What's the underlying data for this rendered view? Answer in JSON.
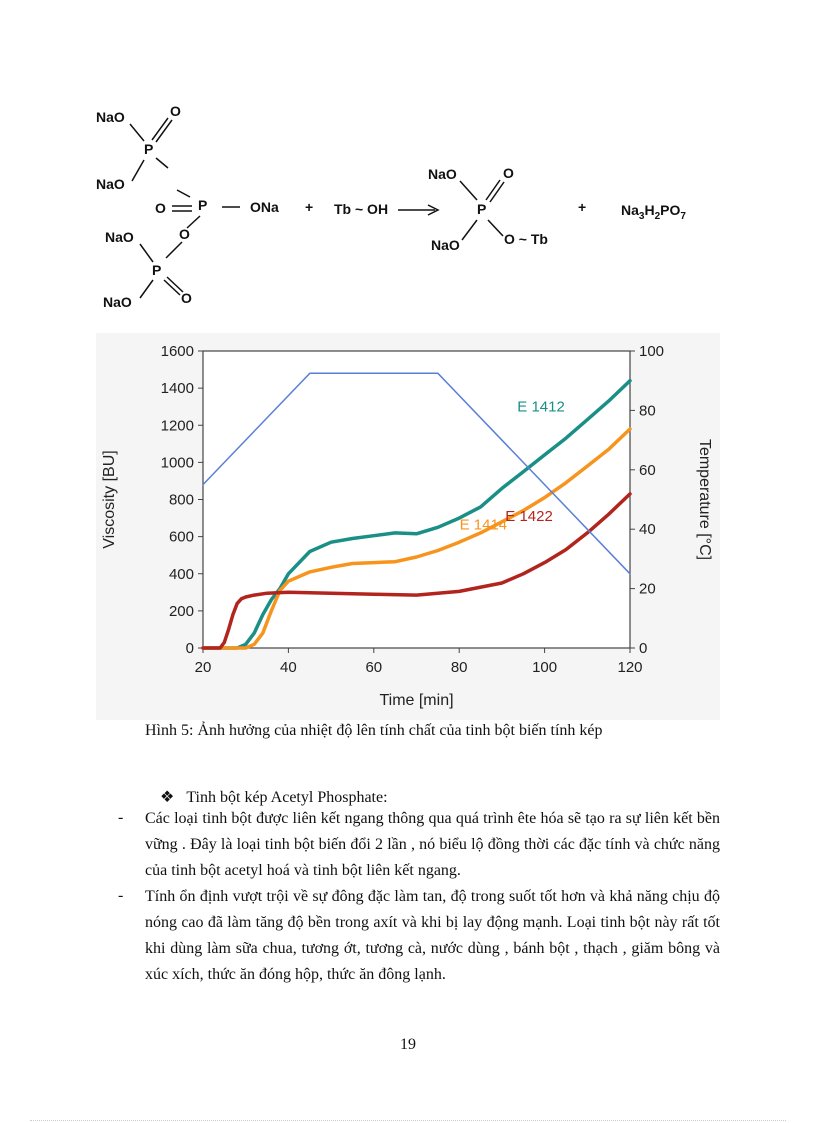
{
  "reaction": {
    "reactant1": {
      "top_nao": "NaO",
      "top_o": "O",
      "top_p": "P",
      "mid_nao": "NaO",
      "center_o": "O",
      "center_p": "P",
      "center_ona": "ONa",
      "bridge_o": "O",
      "bot_nao1": "NaO",
      "bot_p": "P",
      "bot_nao2": "NaO",
      "bot_o": "O"
    },
    "plus1": "+",
    "reactant2": "Tb ~ OH",
    "product1": {
      "nao1": "NaO",
      "o_top": "O",
      "p": "P",
      "nao2": "NaO",
      "o_tb": "O ~ Tb"
    },
    "plus2": "+",
    "product2_main": "Na",
    "product2_sub1": "3",
    "product2_h": "H",
    "product2_sub2": "2",
    "product2_po": "PO",
    "product2_sub3": "7"
  },
  "chart_data": {
    "type": "line",
    "title": "",
    "xlabel": "Time [min]",
    "ylabel": "Viscosity [BU]",
    "y2label": "Temperature [°C]",
    "xlim": [
      20,
      120
    ],
    "ylim": [
      0,
      1600
    ],
    "y2lim": [
      0,
      100
    ],
    "xticks": [
      20,
      40,
      60,
      80,
      100,
      120
    ],
    "yticks": [
      0,
      200,
      400,
      600,
      800,
      1000,
      1200,
      1400,
      1600
    ],
    "y2ticks": [
      0,
      20,
      40,
      60,
      80,
      100
    ],
    "series": [
      {
        "name": "E 1412",
        "color": "#1a8f86",
        "x": [
          20,
          28,
          30,
          32,
          34,
          36,
          38,
          40,
          45,
          50,
          55,
          60,
          65,
          70,
          75,
          80,
          85,
          90,
          95,
          100,
          105,
          110,
          115,
          120
        ],
        "values": [
          0,
          0,
          20,
          80,
          180,
          260,
          320,
          400,
          520,
          570,
          590,
          605,
          620,
          615,
          650,
          700,
          760,
          860,
          950,
          1040,
          1130,
          1230,
          1330,
          1440
        ]
      },
      {
        "name": "E 1414",
        "color": "#f7941d",
        "x": [
          20,
          30,
          32,
          34,
          36,
          38,
          40,
          45,
          50,
          55,
          60,
          65,
          70,
          75,
          80,
          85,
          90,
          95,
          100,
          105,
          110,
          115,
          120
        ],
        "values": [
          0,
          0,
          20,
          80,
          200,
          310,
          360,
          410,
          435,
          455,
          460,
          465,
          490,
          525,
          570,
          620,
          680,
          740,
          810,
          890,
          980,
          1070,
          1180
        ]
      },
      {
        "name": "E 1422",
        "color": "#b2251e",
        "x": [
          20,
          24,
          25,
          26,
          27,
          28,
          29,
          30,
          32,
          35,
          40,
          50,
          60,
          70,
          80,
          90,
          95,
          100,
          105,
          110,
          115,
          120
        ],
        "values": [
          0,
          0,
          30,
          100,
          180,
          240,
          265,
          275,
          285,
          295,
          300,
          295,
          290,
          285,
          305,
          350,
          400,
          460,
          530,
          620,
          720,
          830
        ]
      },
      {
        "name": "Temperature",
        "axis": "y2",
        "color": "#5a7fd6",
        "x": [
          20,
          45,
          75,
          120
        ],
        "values": [
          55,
          92.5,
          92.5,
          25
        ]
      }
    ]
  },
  "caption": "Hình 5: Ảnh hưởng của nhiệt độ lên tính chất của tinh bột biến tính kép",
  "section": {
    "bullet": "❖",
    "heading": "Tinh bột kép Acetyl Phosphate:",
    "items": [
      {
        "dash": "-",
        "text": "Các loại tinh bột được liên kết ngang thông qua quá trình ête hóa sẽ tạo ra sự liên kết bền vững . Đây là loại tinh bột biến đổi 2 lần , nó biểu lộ đồng thời các đặc tính và chức năng của tinh bột acetyl hoá và tinh bột liên kết ngang."
      },
      {
        "dash": "-",
        "text": "Tính ổn định vượt trội về sự đông đặc làm tan, độ trong suốt tốt hơn và khả năng chịu độ nóng cao đã làm tăng độ bền trong axít và khi bị lay động mạnh. Loại tinh bột này rất tốt khi dùng làm sữa chua, tương ớt, tương cà, nước dùng , bánh bột , thạch , giăm bông và xúc xích, thức ăn đóng hộp, thức ăn đông lạnh."
      }
    ]
  },
  "page_number": "19"
}
